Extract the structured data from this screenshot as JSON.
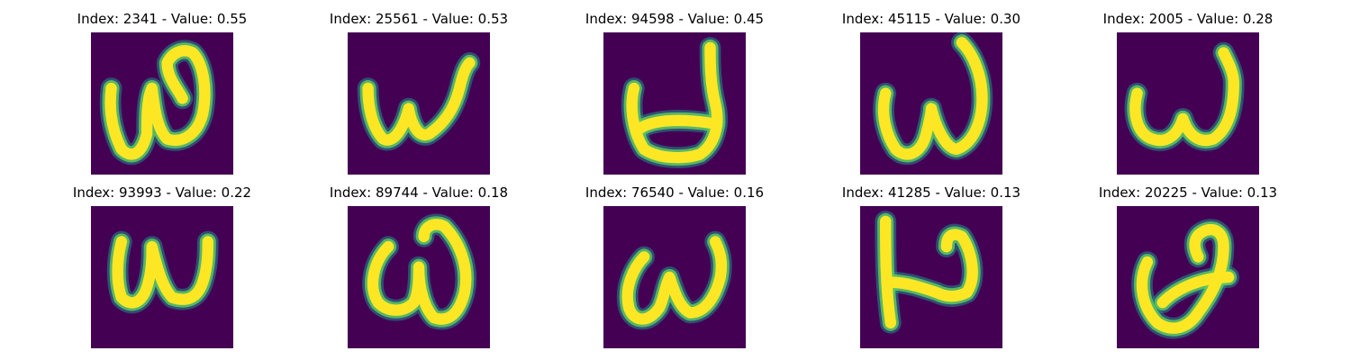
{
  "colors": {
    "background": "#440154",
    "stroke_edge": "#21908d",
    "stroke_mid": "#5ec962",
    "stroke_core": "#fde725"
  },
  "panels": [
    {
      "title": "Index: 2341 - Value: 0.55",
      "glyph": "omega-curly"
    },
    {
      "title": "Index: 25561 - Value: 0.53",
      "glyph": "w-wide"
    },
    {
      "title": "Index: 94598 - Value: 0.45",
      "glyph": "bowl-with-stem"
    },
    {
      "title": "Index: 45115 - Value: 0.30",
      "glyph": "omega-tall-right"
    },
    {
      "title": "Index: 2005 - Value: 0.28",
      "glyph": "w-rounded"
    },
    {
      "title": "Index: 93993 - Value: 0.22",
      "glyph": "w-rounded-short"
    },
    {
      "title": "Index: 89744 - Value: 0.18",
      "glyph": "omega-loops"
    },
    {
      "title": "Index: 76540 - Value: 0.16",
      "glyph": "w-curly-small"
    },
    {
      "title": "Index: 41285 - Value: 0.13",
      "glyph": "n-blocky"
    },
    {
      "title": "Index: 20225 - Value: 0.13",
      "glyph": "loop-slanted"
    }
  ]
}
